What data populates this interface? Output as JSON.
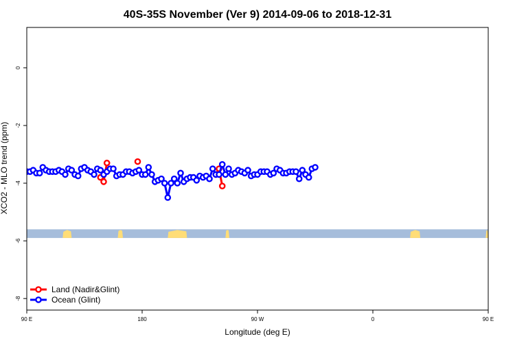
{
  "chart_data": {
    "type": "line",
    "title": "40S-35S November (Ver 9)   2014-09-06 to 2018-12-31",
    "xlabel": "Longitude (deg E)",
    "ylabel": "XCO2 - MLO trend (ppm)",
    "xlim": [
      90,
      450
    ],
    "ylim": [
      -8.4,
      1.4
    ],
    "x_ticks": [
      {
        "value": 90,
        "label": "90 E"
      },
      {
        "value": 180,
        "label": "180"
      },
      {
        "value": 270,
        "label": "90 W"
      },
      {
        "value": 360,
        "label": "0"
      },
      {
        "value": 450,
        "label": "90 E"
      },
      {
        "value": 540,
        "label": "180"
      }
    ],
    "y_ticks": [
      {
        "value": 0,
        "label": "0"
      },
      {
        "value": -2,
        "label": "-2"
      },
      {
        "value": -4,
        "label": "-4"
      },
      {
        "value": -6,
        "label": "-6"
      },
      {
        "value": -8,
        "label": "-8"
      }
    ],
    "land_band": {
      "y_top": -5.6,
      "y_bottom": -5.9,
      "color": "#a6bddb",
      "land_color": "#ffdd77"
    },
    "legend": {
      "placement": "bottom-left"
    },
    "series": [
      {
        "name": "Land (Nadir&Glint)",
        "color": "#ff0000",
        "segments": [
          {
            "x": [
              147.5,
              150,
              152.5
            ],
            "y": [
              -3.8,
              -3.95,
              -3.3
            ]
          },
          {
            "x": [
              176.5
            ],
            "y": [
              -3.25
            ]
          },
          {
            "x": [
              237.5,
              240,
              242.5
            ],
            "y": [
              -3.7,
              -3.5,
              -4.1
            ]
          },
          {
            "x": [
              507.5,
              510,
              512.5
            ],
            "y": [
              -3.8,
              -3.95,
              -3.3
            ]
          },
          {
            "x": [
              537.5
            ],
            "y": [
              -3.25
            ]
          }
        ]
      },
      {
        "name": "Ocean (Glint)",
        "color": "#0000ff",
        "points": [
          [
            90,
            -3.6
          ],
          [
            92.5,
            -3.6
          ],
          [
            95,
            -3.55
          ],
          [
            97.5,
            -3.65
          ],
          [
            100,
            -3.65
          ],
          [
            102.5,
            -3.45
          ],
          [
            105,
            -3.55
          ],
          [
            107.5,
            -3.6
          ],
          [
            110,
            -3.6
          ],
          [
            112.5,
            -3.6
          ],
          [
            115,
            -3.55
          ],
          [
            117.5,
            -3.6
          ],
          [
            120,
            -3.7
          ],
          [
            122.5,
            -3.5
          ],
          [
            125,
            -3.55
          ],
          [
            127.5,
            -3.7
          ],
          [
            130,
            -3.75
          ],
          [
            132.5,
            -3.5
          ],
          [
            135,
            -3.45
          ],
          [
            137.5,
            -3.55
          ],
          [
            140,
            -3.6
          ],
          [
            142.5,
            -3.7
          ],
          [
            145,
            -3.5
          ],
          [
            147.5,
            -3.55
          ],
          [
            150,
            -3.7
          ],
          [
            152.5,
            -3.6
          ],
          [
            155,
            -3.5
          ],
          [
            157.5,
            -3.5
          ],
          [
            160,
            -3.75
          ],
          [
            162.5,
            -3.7
          ],
          [
            165,
            -3.7
          ],
          [
            167.5,
            -3.6
          ],
          [
            170,
            -3.6
          ],
          [
            172.5,
            -3.65
          ],
          [
            175,
            -3.6
          ],
          [
            177.5,
            -3.55
          ],
          [
            180,
            -3.7
          ],
          [
            182.5,
            -3.7
          ],
          [
            185,
            -3.45
          ],
          [
            187.5,
            -3.7
          ],
          [
            190,
            -3.95
          ],
          [
            192.5,
            -3.9
          ],
          [
            195,
            -3.85
          ],
          [
            197.5,
            -4.0
          ],
          [
            200,
            -4.5
          ],
          [
            202.5,
            -4.0
          ],
          [
            205,
            -3.85
          ],
          [
            207.5,
            -4.0
          ],
          [
            210,
            -3.65
          ],
          [
            212.5,
            -3.95
          ],
          [
            215,
            -3.85
          ],
          [
            217.5,
            -3.8
          ],
          [
            220,
            -3.8
          ],
          [
            222.5,
            -3.9
          ],
          [
            225,
            -3.75
          ],
          [
            227.5,
            -3.8
          ],
          [
            230,
            -3.75
          ],
          [
            232.5,
            -3.85
          ],
          [
            235,
            -3.5
          ],
          [
            237.5,
            -3.7
          ],
          [
            240,
            -3.7
          ],
          [
            242.5,
            -3.35
          ],
          [
            245,
            -3.7
          ],
          [
            247.5,
            -3.5
          ],
          [
            250,
            -3.7
          ],
          [
            252.5,
            -3.65
          ],
          [
            255,
            -3.55
          ],
          [
            257.5,
            -3.6
          ],
          [
            260,
            -3.65
          ],
          [
            262.5,
            -3.55
          ],
          [
            265,
            -3.75
          ],
          [
            267.5,
            -3.7
          ],
          [
            270,
            -3.7
          ],
          [
            272.5,
            -3.6
          ],
          [
            275,
            -3.6
          ],
          [
            277.5,
            -3.6
          ],
          [
            280,
            -3.7
          ],
          [
            282.5,
            -3.65
          ],
          [
            285,
            -3.5
          ],
          [
            287.5,
            -3.55
          ],
          [
            290,
            -3.65
          ],
          [
            292.5,
            -3.65
          ],
          [
            295,
            -3.6
          ],
          [
            297.5,
            -3.6
          ],
          [
            300,
            -3.6
          ],
          [
            302.5,
            -3.85
          ],
          [
            305,
            -3.55
          ],
          [
            307.5,
            -3.7
          ],
          [
            310,
            -3.8
          ],
          [
            312.5,
            -3.5
          ],
          [
            315,
            -3.45
          ]
        ]
      }
    ]
  }
}
